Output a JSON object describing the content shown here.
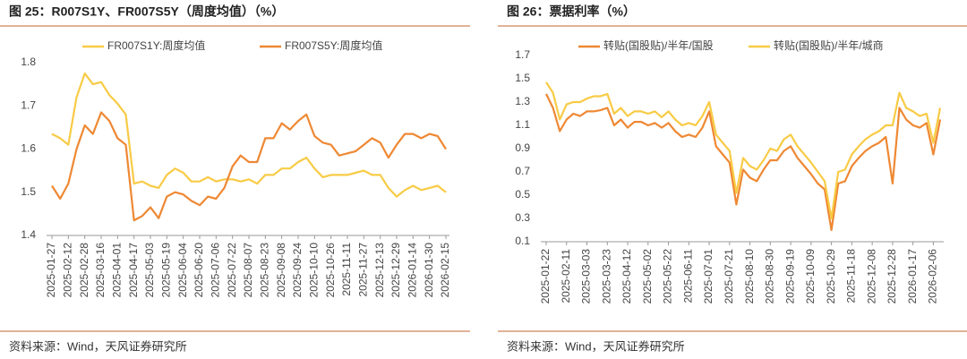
{
  "chart_data": [
    {
      "type": "line",
      "title": "图 25：R007S1Y、FR007S5Y（周度均值）（%）",
      "source": "资料来源：Wind，天风证券研究所",
      "legend": "top",
      "categories": [
        "2025-01-27",
        null,
        "2025-02-12",
        null,
        "2025-02-28",
        null,
        "2025-03-16",
        null,
        "2025-04-01",
        null,
        "2025-04-17",
        null,
        "2025-05-03",
        null,
        "2025-05-19",
        null,
        "2025-06-04",
        null,
        "2025-06-20",
        null,
        "2025-07-06",
        null,
        "2025-07-22",
        null,
        "2025-08-07",
        null,
        "2025-08-23",
        null,
        "2025-09-08",
        null,
        "2025-09-24",
        null,
        "2025-10-10",
        null,
        "2025-10-26",
        null,
        "2025-11-11",
        null,
        "2025-11-27",
        null,
        "2025-12-13",
        null,
        "2025-12-29",
        null,
        "2026-01-14",
        null,
        "2026-01-30",
        null,
        "2026-02-15"
      ],
      "series": [
        {
          "name": "FR007S1Y:周度均值",
          "color": "#f8cb45",
          "values": [
            1.635,
            1.625,
            1.61,
            1.72,
            1.775,
            1.75,
            1.755,
            1.725,
            1.705,
            1.68,
            1.52,
            1.525,
            1.515,
            1.51,
            1.54,
            1.555,
            1.545,
            1.525,
            1.525,
            1.535,
            1.525,
            1.53,
            1.53,
            1.525,
            1.53,
            1.52,
            1.54,
            1.54,
            1.555,
            1.555,
            1.57,
            1.58,
            1.555,
            1.535,
            1.54,
            1.54,
            1.54,
            1.545,
            1.55,
            1.54,
            1.54,
            1.51,
            1.49,
            1.505,
            1.515,
            1.505,
            1.51,
            1.515,
            1.5
          ]
        },
        {
          "name": "FR007S5Y:周度均值",
          "color": "#ee8833",
          "values": [
            1.515,
            1.485,
            1.52,
            1.6,
            1.655,
            1.635,
            1.685,
            1.665,
            1.625,
            1.61,
            1.435,
            1.445,
            1.465,
            1.44,
            1.49,
            1.5,
            1.495,
            1.48,
            1.47,
            1.49,
            1.485,
            1.51,
            1.56,
            1.585,
            1.57,
            1.57,
            1.625,
            1.625,
            1.66,
            1.645,
            1.665,
            1.68,
            1.63,
            1.615,
            1.61,
            1.585,
            1.59,
            1.595,
            1.61,
            1.625,
            1.615,
            1.58,
            1.61,
            1.635,
            1.635,
            1.625,
            1.635,
            1.63,
            1.6
          ]
        }
      ],
      "ylim": [
        1.4,
        1.8
      ],
      "yticks": [
        1.4,
        1.5,
        1.6,
        1.7,
        1.8
      ],
      "grid": false
    },
    {
      "type": "line",
      "title": "图 26：票据利率（%）",
      "source": "资料来源：Wind，天风证券研究所",
      "legend": "top",
      "categories": [
        "2025-01-22",
        null,
        null,
        "2025-02-11",
        null,
        null,
        "2025-03-03",
        null,
        null,
        "2025-03-23",
        null,
        null,
        "2025-04-12",
        null,
        null,
        "2025-05-02",
        null,
        null,
        "2025-05-22",
        null,
        null,
        "2025-06-11",
        null,
        null,
        "2025-07-01",
        null,
        null,
        "2025-07-21",
        null,
        null,
        "2025-08-10",
        null,
        null,
        "2025-08-30",
        null,
        null,
        "2025-09-19",
        null,
        null,
        "2025-10-09",
        null,
        null,
        "2025-10-29",
        null,
        null,
        "2025-11-18",
        null,
        null,
        "2025-12-08",
        null,
        null,
        "2025-12-28",
        null,
        null,
        "2026-01-17",
        null,
        null,
        "2026-02-06",
        null
      ],
      "series": [
        {
          "name": "转贴(国股贴)/半年/国股",
          "color": "#ee8833",
          "values": [
            1.37,
            1.25,
            1.05,
            1.15,
            1.2,
            1.18,
            1.22,
            1.22,
            1.23,
            1.25,
            1.1,
            1.15,
            1.08,
            1.13,
            1.13,
            1.1,
            1.12,
            1.08,
            1.12,
            1.05,
            1.0,
            1.02,
            1.0,
            1.08,
            1.22,
            0.92,
            0.85,
            0.78,
            0.42,
            0.72,
            0.65,
            0.62,
            0.72,
            0.8,
            0.8,
            0.88,
            0.92,
            0.82,
            0.75,
            0.68,
            0.6,
            0.55,
            0.2,
            0.6,
            0.62,
            0.75,
            0.82,
            0.88,
            0.92,
            0.95,
            1.0,
            0.6,
            1.25,
            1.15,
            1.1,
            1.08,
            1.12,
            0.85,
            1.15
          ]
        },
        {
          "name": "转贴(国股贴)/半年/城商",
          "color": "#f8cb45",
          "values": [
            1.47,
            1.38,
            1.15,
            1.28,
            1.3,
            1.3,
            1.33,
            1.35,
            1.35,
            1.37,
            1.2,
            1.25,
            1.18,
            1.22,
            1.22,
            1.2,
            1.22,
            1.17,
            1.22,
            1.15,
            1.1,
            1.12,
            1.1,
            1.18,
            1.3,
            1.02,
            0.95,
            0.88,
            0.52,
            0.82,
            0.75,
            0.72,
            0.8,
            0.9,
            0.88,
            0.98,
            1.02,
            0.92,
            0.85,
            0.78,
            0.7,
            0.62,
            0.3,
            0.7,
            0.72,
            0.85,
            0.92,
            0.98,
            1.02,
            1.05,
            1.1,
            1.1,
            1.38,
            1.25,
            1.22,
            1.18,
            1.2,
            0.95,
            1.25
          ]
        }
      ],
      "ylim": [
        0.1,
        1.7
      ],
      "yticks": [
        0.1,
        0.3,
        0.5,
        0.7,
        0.9,
        1.1,
        1.3,
        1.5,
        1.7
      ],
      "grid": false
    }
  ]
}
